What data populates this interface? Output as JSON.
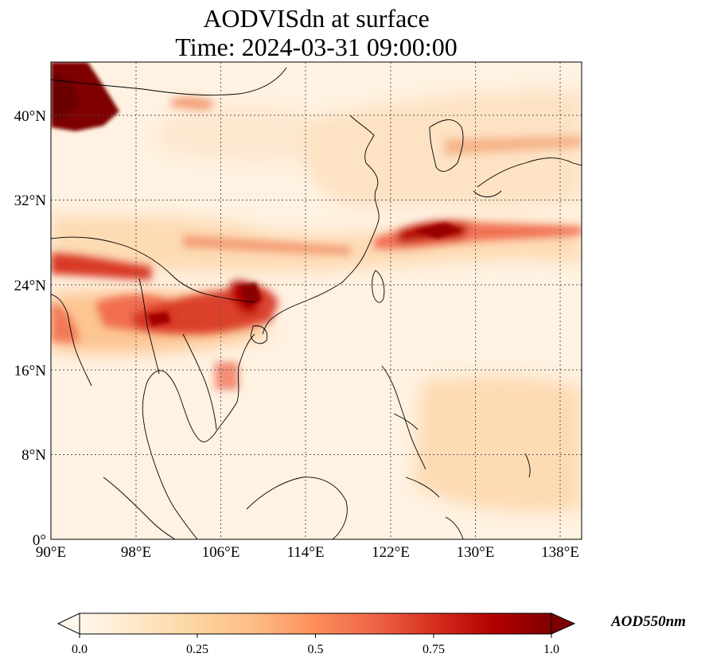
{
  "title": {
    "line1": "AODVISdn at surface",
    "line2": "Time: 2024-03-31 09:00:00"
  },
  "map": {
    "lon_range": [
      90,
      140
    ],
    "lat_range": [
      0,
      45
    ],
    "lon_ticks": [
      {
        "value": 90,
        "label": "90°E"
      },
      {
        "value": 98,
        "label": "98°E"
      },
      {
        "value": 106,
        "label": "106°E"
      },
      {
        "value": 114,
        "label": "114°E"
      },
      {
        "value": 122,
        "label": "122°E"
      },
      {
        "value": 130,
        "label": "130°E"
      },
      {
        "value": 138,
        "label": "138°E"
      }
    ],
    "lat_ticks": [
      {
        "value": 0,
        "label": "0°"
      },
      {
        "value": 8,
        "label": "8°N"
      },
      {
        "value": 16,
        "label": "16°N"
      },
      {
        "value": 24,
        "label": "24°N"
      },
      {
        "value": 32,
        "label": "32°N"
      },
      {
        "value": 40,
        "label": "40°N"
      }
    ],
    "gridlines": true,
    "colormap": "OrRd"
  },
  "colorbar": {
    "min": 0.0,
    "max": 1.0,
    "ticks": [
      {
        "value": 0.0,
        "label": "0.0"
      },
      {
        "value": 0.25,
        "label": "0.25"
      },
      {
        "value": 0.5,
        "label": "0.5"
      },
      {
        "value": 0.75,
        "label": "0.75"
      },
      {
        "value": 1.0,
        "label": "1.0"
      }
    ],
    "unit_label": "AOD550nm",
    "extend": "both",
    "colors": [
      "#fff7ec",
      "#fdd49e",
      "#fc8d59",
      "#d7301f",
      "#7f0000"
    ]
  }
}
